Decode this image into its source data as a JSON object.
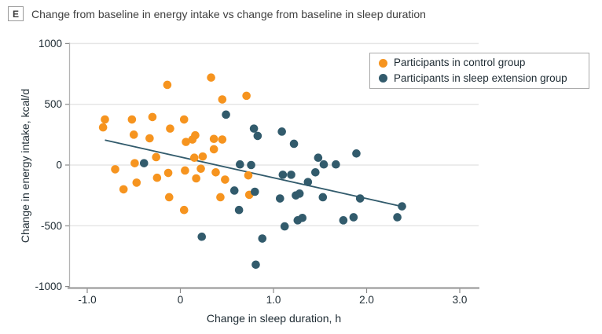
{
  "panel": {
    "label": "E",
    "title": "Change from baseline in energy intake vs change from baseline in sleep duration"
  },
  "colors": {
    "control": "#F6941F",
    "extension": "#325B6C",
    "grid": "#E6E6E6",
    "spine": "#B3B3B3",
    "bottom_axis": "#9E9E9E",
    "tick": "#8A8A8A",
    "text": "#1E2B33",
    "title_text": "#3F3F3F",
    "legend_border": "#A9A9A9"
  },
  "chart_data": {
    "type": "scatter",
    "xlabel": "Change in sleep duration, h",
    "ylabel": "Change in energy intake, kcal/d",
    "xlim": [
      -1.19,
      3.2
    ],
    "ylim": [
      -1010,
      1000
    ],
    "grid": "horizontal-only",
    "legend_position": "top-right",
    "x_ticks": [
      {
        "value": -1.0,
        "label": "-1.0"
      },
      {
        "value": 0.0,
        "label": "0"
      },
      {
        "value": 1.0,
        "label": "1.0"
      },
      {
        "value": 2.0,
        "label": "2.0"
      },
      {
        "value": 3.0,
        "label": "3.0"
      }
    ],
    "y_ticks": [
      {
        "value": 1000,
        "label": "1000"
      },
      {
        "value": 500,
        "label": "500"
      },
      {
        "value": 0,
        "label": "0"
      },
      {
        "value": -500,
        "label": "-500"
      },
      {
        "value": -1000,
        "label": "-1000"
      }
    ],
    "y_gridlines": [
      1000,
      500,
      0,
      -500
    ],
    "trend_line": {
      "x1": -0.81,
      "y1": 205,
      "x2": 2.38,
      "y2": -341
    },
    "series": [
      {
        "name": "Participants in control group",
        "color": "#F6941F",
        "points": [
          [
            -0.14,
            660
          ],
          [
            0.33,
            720
          ],
          [
            0.45,
            540
          ],
          [
            0.71,
            570
          ],
          [
            -0.81,
            375
          ],
          [
            -0.83,
            310
          ],
          [
            -0.52,
            375
          ],
          [
            -0.3,
            395
          ],
          [
            0.04,
            375
          ],
          [
            -0.5,
            250
          ],
          [
            -0.33,
            220
          ],
          [
            -0.11,
            300
          ],
          [
            0.06,
            190
          ],
          [
            0.13,
            210
          ],
          [
            0.16,
            245
          ],
          [
            0.36,
            215
          ],
          [
            0.45,
            210
          ],
          [
            0.36,
            130
          ],
          [
            -0.26,
            65
          ],
          [
            0.15,
            60
          ],
          [
            0.24,
            70
          ],
          [
            -0.49,
            15
          ],
          [
            0.05,
            -45
          ],
          [
            -0.7,
            -35
          ],
          [
            -0.25,
            -105
          ],
          [
            -0.13,
            -65
          ],
          [
            0.22,
            -30
          ],
          [
            0.38,
            -60
          ],
          [
            0.17,
            -110
          ],
          [
            0.48,
            -120
          ],
          [
            0.73,
            -85
          ],
          [
            -0.47,
            -145
          ],
          [
            -0.61,
            -200
          ],
          [
            -0.12,
            -265
          ],
          [
            0.43,
            -265
          ],
          [
            0.74,
            -245
          ],
          [
            0.04,
            -370
          ]
        ]
      },
      {
        "name": "Participants in sleep extension group",
        "color": "#325B6C",
        "points": [
          [
            0.49,
            415
          ],
          [
            0.79,
            300
          ],
          [
            0.83,
            240
          ],
          [
            1.09,
            275
          ],
          [
            1.22,
            175
          ],
          [
            1.48,
            60
          ],
          [
            1.54,
            5
          ],
          [
            1.67,
            5
          ],
          [
            1.89,
            95
          ],
          [
            -0.39,
            15
          ],
          [
            0.64,
            5
          ],
          [
            0.76,
            0
          ],
          [
            1.1,
            -80
          ],
          [
            1.19,
            -80
          ],
          [
            1.45,
            -60
          ],
          [
            1.37,
            -140
          ],
          [
            0.58,
            -210
          ],
          [
            0.8,
            -220
          ],
          [
            1.07,
            -275
          ],
          [
            1.24,
            -250
          ],
          [
            1.28,
            -235
          ],
          [
            1.53,
            -265
          ],
          [
            1.93,
            -275
          ],
          [
            0.63,
            -370
          ],
          [
            1.26,
            -455
          ],
          [
            1.31,
            -435
          ],
          [
            1.75,
            -455
          ],
          [
            1.86,
            -430
          ],
          [
            1.12,
            -505
          ],
          [
            0.23,
            -590
          ],
          [
            0.88,
            -605
          ],
          [
            0.81,
            -820
          ],
          [
            2.38,
            -340
          ],
          [
            2.33,
            -430
          ]
        ]
      }
    ]
  },
  "legend": {
    "items": [
      {
        "label": "Participants in control group"
      },
      {
        "label": "Participants in sleep extension group"
      }
    ]
  }
}
